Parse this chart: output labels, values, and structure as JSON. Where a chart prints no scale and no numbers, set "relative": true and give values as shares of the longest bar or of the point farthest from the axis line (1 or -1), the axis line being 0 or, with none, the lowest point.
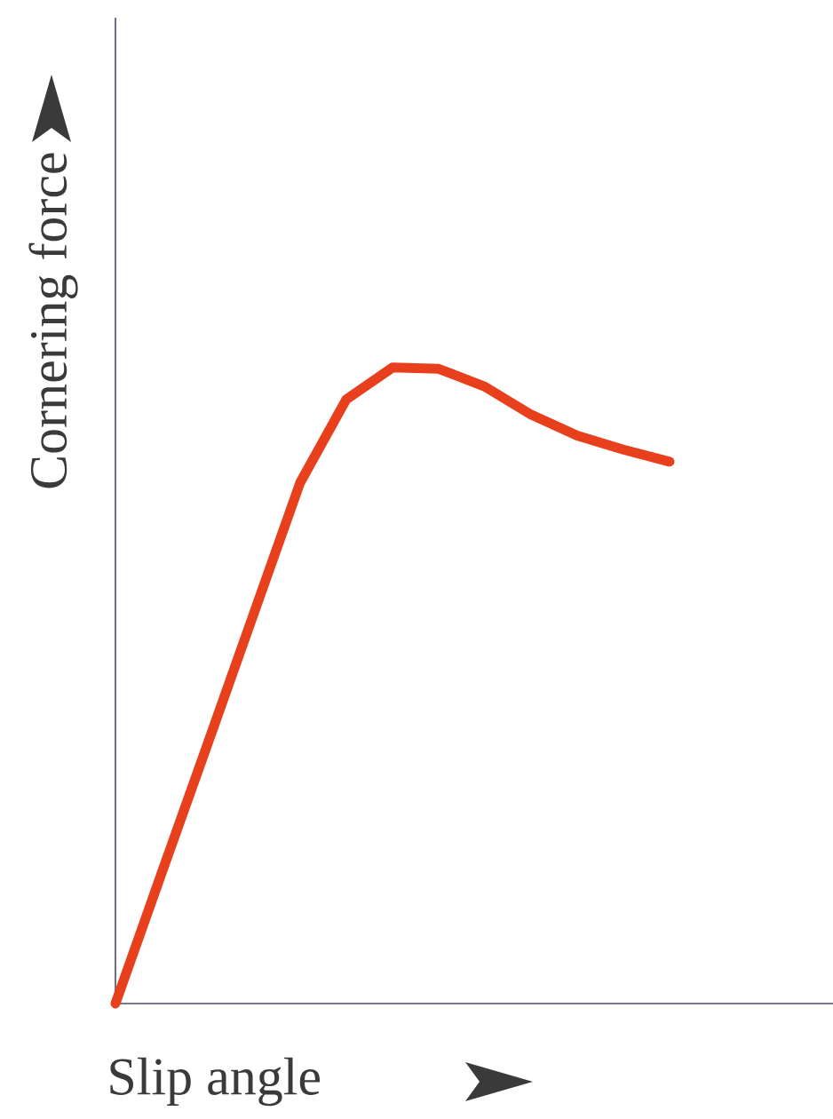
{
  "chart_data": {
    "type": "line",
    "xlabel": "Slip angle",
    "ylabel": "Cornering force",
    "relative": true,
    "categories": [
      null,
      null,
      null,
      null,
      null,
      null,
      null,
      null,
      null,
      null,
      null,
      null,
      null
    ],
    "values": [
      0,
      0.205,
      0.409,
      0.614,
      0.819,
      0.95,
      1,
      0.998,
      0.97,
      0.926,
      0.893,
      0.871,
      0.852
    ],
    "color": "#e8401c"
  }
}
